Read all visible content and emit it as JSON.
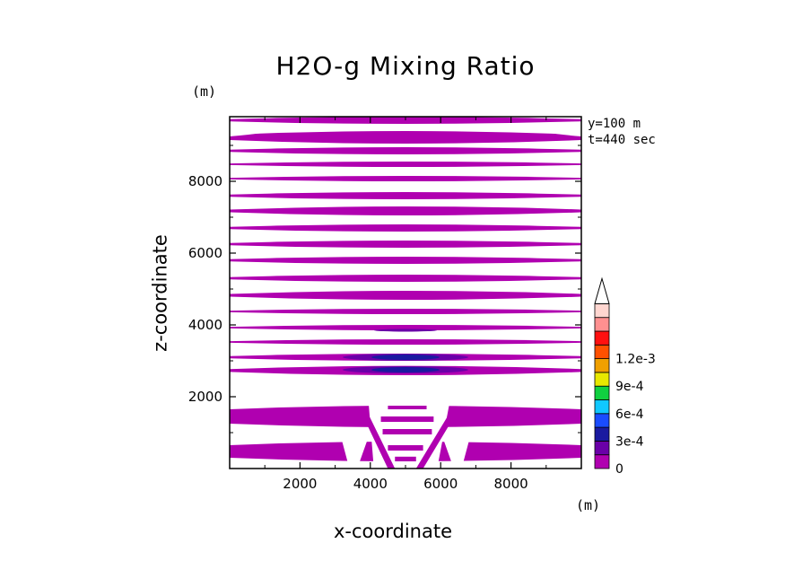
{
  "chart_data": {
    "type": "heatmap",
    "title": "H2O-g Mixing Ratio",
    "xlabel": "x-coordinate",
    "ylabel": "z-coordinate",
    "x_unit": "(m)",
    "y_unit": "(m)",
    "annotations": [
      "y=100 m",
      "t=440 sec"
    ],
    "xlim": [
      0,
      10000
    ],
    "ylim": [
      0,
      9800
    ],
    "xticks": [
      2000,
      4000,
      6000,
      8000
    ],
    "yticks": [
      2000,
      4000,
      6000,
      8000
    ],
    "xtick_labels": [
      "2000",
      "4000",
      "6000",
      "8000"
    ],
    "ytick_labels": [
      "2000",
      "4000",
      "6000",
      "8000"
    ],
    "colorbar": {
      "levels": [
        0,
        0.00015,
        0.0003,
        0.00045,
        0.0006,
        0.00075,
        0.0009,
        0.00105,
        0.0012,
        0.00135
      ],
      "colors": [
        "#b000b0",
        "#6a00a8",
        "#1a1aa0",
        "#1a4cff",
        "#10c8ff",
        "#10d040",
        "#e8e800",
        "#f0a000",
        "#ff5000",
        "#ff1010",
        "#ff9090",
        "#ffd6d0"
      ],
      "tick_labels": [
        "0",
        "3e-4",
        "6e-4",
        "9e-4",
        "1.2e-3"
      ],
      "extend": "max"
    },
    "bands_z_m": [
      [
        200,
        750
      ],
      [
        1150,
        1750
      ],
      [
        2600,
        2860
      ],
      [
        3000,
        3200
      ],
      [
        3450,
        3600
      ],
      [
        3850,
        4000
      ],
      [
        4300,
        4450
      ],
      [
        4700,
        4950
      ],
      [
        5200,
        5400
      ],
      [
        5700,
        5900
      ],
      [
        6150,
        6350
      ],
      [
        6600,
        6800
      ],
      [
        7050,
        7300
      ],
      [
        7500,
        7700
      ],
      [
        8000,
        8150
      ],
      [
        8400,
        8550
      ],
      [
        8750,
        8950
      ],
      [
        9050,
        9400
      ],
      [
        9600,
        9800
      ]
    ],
    "blue_cores_z_m": [
      2750,
      3100
    ],
    "peak_x_m": 5000,
    "plume_x_range_m": [
      3800,
      6400
    ],
    "plume_top_z_m": 1800
  }
}
